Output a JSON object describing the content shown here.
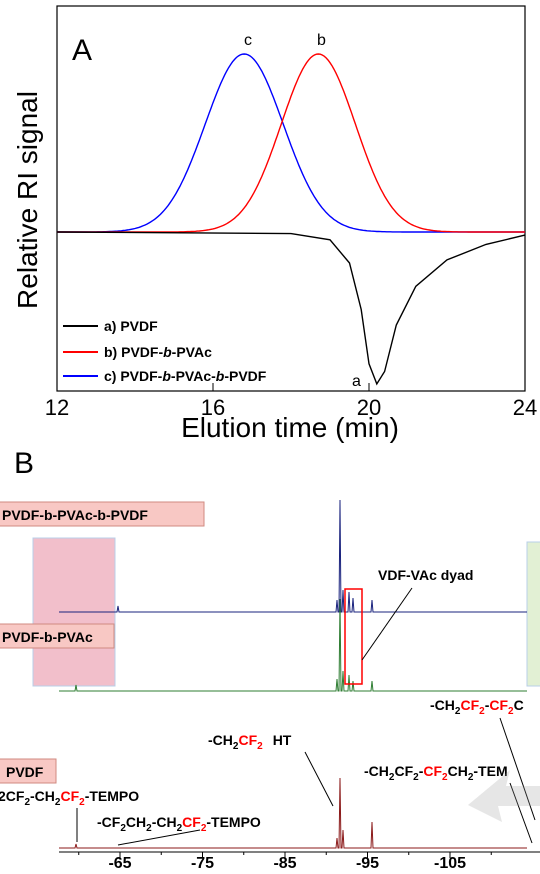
{
  "chart_data": [
    {
      "type": "line",
      "panel_label": "A",
      "xlabel": "Elution time (min)",
      "ylabel": "Relative RI signal",
      "xlim": [
        12,
        24
      ],
      "x_ticks": [
        "12",
        "16",
        "20",
        "24"
      ],
      "series": [
        {
          "name": "a) PVDF",
          "label": "a",
          "color": "#000000",
          "points": [
            [
              12,
              0
            ],
            [
              18,
              -0.01
            ],
            [
              19,
              -0.05
            ],
            [
              19.5,
              -0.2
            ],
            [
              19.8,
              -0.5
            ],
            [
              20.0,
              -0.85
            ],
            [
              20.2,
              -0.98
            ],
            [
              20.4,
              -0.9
            ],
            [
              20.7,
              -0.6
            ],
            [
              21.2,
              -0.35
            ],
            [
              22,
              -0.18
            ],
            [
              23,
              -0.08
            ],
            [
              24,
              -0.02
            ]
          ]
        },
        {
          "name": "b) PVDF-b-PVAc",
          "label": "b",
          "color": "#ff0000",
          "peak": {
            "x": 18.7,
            "y": 1.0
          }
        },
        {
          "name": "c) PVDF-b-PVAc-b-PVDF",
          "label": "c",
          "color": "#0000ff",
          "peak": {
            "x": 16.8,
            "y": 1.0
          }
        }
      ],
      "legend": [
        {
          "prefix": "a) PVDF",
          "italic": "",
          "suffix": "",
          "tail_italic": "",
          "tail": ""
        },
        {
          "prefix": "b) PVDF-",
          "italic": "b",
          "suffix": "-PVAc",
          "tail_italic": "",
          "tail": ""
        },
        {
          "prefix": "c) PVDF-",
          "italic": "b",
          "suffix": "-PVAc-",
          "tail_italic": "b",
          "tail": "-PVDF"
        }
      ],
      "legend_position": "bottom-left"
    },
    {
      "type": "line",
      "panel_label": "B",
      "x_ticks": [
        "-65",
        "-75",
        "-85",
        "-95",
        "-105"
      ],
      "xlim": [
        -55,
        -112
      ],
      "x_reversed": true,
      "series": [
        {
          "name": "PVDF-b-PVAc-b-PVDF",
          "color": "#1a237e"
        },
        {
          "name": "PVDF-b-PVAc",
          "color": "#2e7d32"
        },
        {
          "name": "PVDF",
          "color": "#8b1a1a"
        }
      ],
      "boxes": {
        "top": "PVDF-b-PVAc-b-PVDF",
        "middle": "PVDF-b-PVAc",
        "bottom": "PVDF"
      },
      "annotations": {
        "dyad": "VDF-VAc dyad",
        "ht": "-CH2CF2  HT",
        "tempo1": "2CF2-CH2CF2-TEMPO",
        "tempo2": "-CF2CH2-CH2CF2-TEMPO",
        "right1": "-CH2CF2-CF2C",
        "right2": "-CH2CF2-CF2CH2-TEM"
      }
    }
  ]
}
